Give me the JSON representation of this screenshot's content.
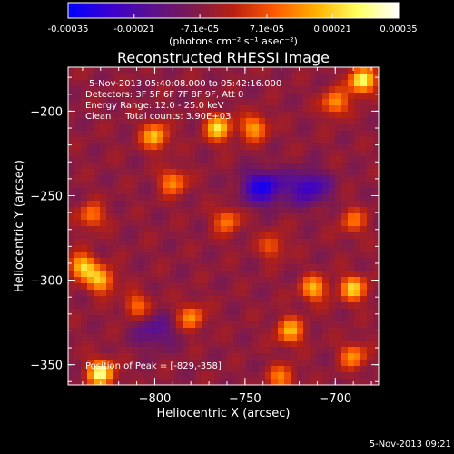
{
  "colorbar": {
    "tick_labels": [
      "-0.00035",
      "-0.00021",
      "-7.1e-05",
      "7.1e-05",
      "0.00021",
      "0.00035"
    ],
    "tick_values": [
      -0.00035,
      -0.00021,
      -7.1e-05,
      7.1e-05,
      0.00021,
      0.00035
    ],
    "range": [
      -0.00035,
      0.00035
    ],
    "unit_label": "(photons cm⁻² s⁻¹ asec⁻²)",
    "colors": [
      "#0000ff",
      "#3a00d0",
      "#5a1090",
      "#7a1a50",
      "#b82010",
      "#ff5a00",
      "#ffb000",
      "#ffff60",
      "#ffffff"
    ]
  },
  "chart_data": {
    "type": "heatmap",
    "title": "Reconstructed RHESSI Image",
    "xlabel": "Heliocentric X (arcsec)",
    "ylabel": "Heliocentric Y (arcsec)",
    "xlim": [
      -848,
      -676
    ],
    "ylim": [
      -362,
      -174
    ],
    "x_ticks": [
      -800,
      -750,
      -700
    ],
    "x_tick_labels": [
      "−800",
      "−750",
      "−700"
    ],
    "y_ticks": [
      -350,
      -300,
      -250,
      -200
    ],
    "y_tick_labels": [
      "−350",
      "−300",
      "−250",
      "−200"
    ],
    "annotations": [
      "5-Nov-2013 05:40:08.000 to 05:42:16.000",
      "Detectors: 3F 5F 6F 7F 8F 9F, Att 0",
      "Energy Range: 12.0 - 25.0 keV",
      "Clean     Total counts: 3.90E+03"
    ],
    "peak_label": "Position of Peak = [-829,-358]",
    "peak": [
      -829,
      -358
    ],
    "sources": [
      {
        "x": -830,
        "y": -355,
        "value": 0.00035
      },
      {
        "x": -840,
        "y": -292,
        "value": 0.00028
      },
      {
        "x": -830,
        "y": -300,
        "value": 0.00026
      },
      {
        "x": -835,
        "y": -262,
        "value": 0.00018
      },
      {
        "x": -800,
        "y": -215,
        "value": 0.00026
      },
      {
        "x": -790,
        "y": -242,
        "value": 0.0002
      },
      {
        "x": -765,
        "y": -210,
        "value": 0.00028
      },
      {
        "x": -745,
        "y": -210,
        "value": 0.00022
      },
      {
        "x": -780,
        "y": -322,
        "value": 0.0002
      },
      {
        "x": -810,
        "y": -315,
        "value": 0.00016
      },
      {
        "x": -760,
        "y": -265,
        "value": 0.00018
      },
      {
        "x": -725,
        "y": -330,
        "value": 0.00024
      },
      {
        "x": -712,
        "y": -305,
        "value": 0.00024
      },
      {
        "x": -700,
        "y": -195,
        "value": 0.00022
      },
      {
        "x": -685,
        "y": -182,
        "value": 0.00034
      },
      {
        "x": -690,
        "y": -305,
        "value": 0.00027
      },
      {
        "x": -690,
        "y": -345,
        "value": 0.0002
      },
      {
        "x": -730,
        "y": -358,
        "value": 0.00018
      },
      {
        "x": -690,
        "y": -265,
        "value": 0.00016
      },
      {
        "x": -735,
        "y": -280,
        "value": 0.00014
      }
    ],
    "negative_regions": [
      {
        "x": -740,
        "y": -245,
        "value": -0.00025
      },
      {
        "x": -715,
        "y": -245,
        "value": -0.0002
      },
      {
        "x": -800,
        "y": -330,
        "value": -0.00012
      }
    ]
  },
  "footer": {
    "timestamp": "5-Nov-2013 09:21"
  }
}
